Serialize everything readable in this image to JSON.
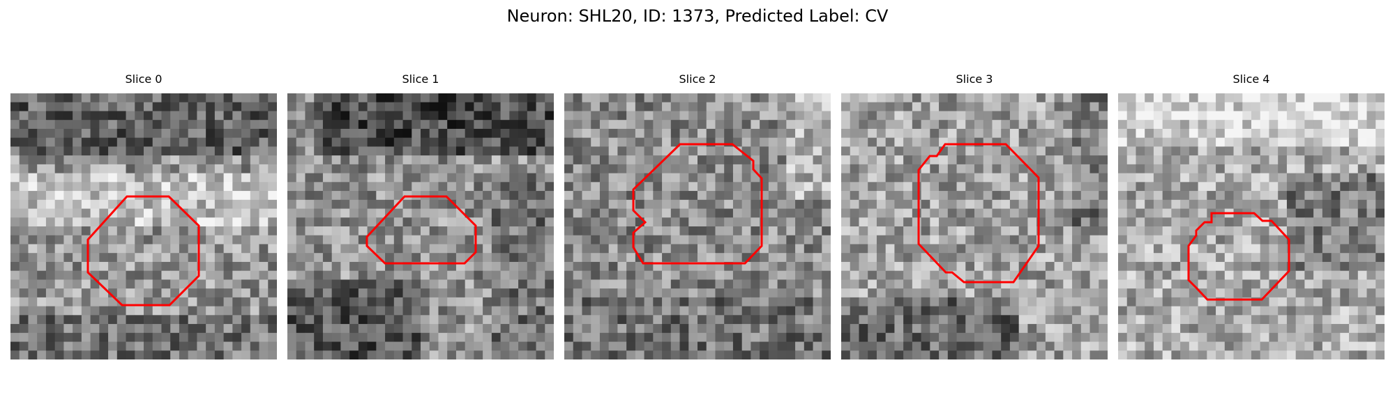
{
  "figure": {
    "title": "Neuron: SHL20, ID: 1373, Predicted Label: CV",
    "outline_color": "#ff0000"
  },
  "panels": [
    {
      "title": "Slice 0"
    },
    {
      "title": "Slice 1"
    },
    {
      "title": "Slice 2"
    },
    {
      "title": "Slice 3"
    },
    {
      "title": "Slice 4"
    }
  ]
}
